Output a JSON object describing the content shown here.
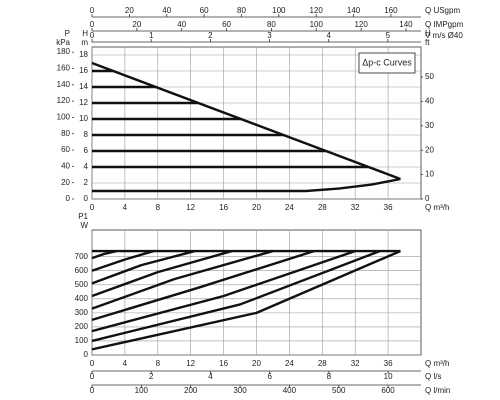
{
  "chart_data": [
    {
      "type": "line",
      "annotation": "Δp-c Curves",
      "color": "#111111",
      "grid": true,
      "xlim": [
        0,
        40
      ],
      "xticks": [
        0,
        4,
        8,
        12,
        16,
        20,
        24,
        28,
        32,
        36
      ],
      "xlabel": "Q m³/h",
      "ylim": [
        0,
        19
      ],
      "yticks": [
        0,
        2,
        4,
        6,
        8,
        10,
        12,
        14,
        16,
        18
      ],
      "ylabel": [
        "H",
        "m"
      ],
      "extra_axes": [
        {
          "position": "left-outer",
          "label": [
            "P",
            "kPa"
          ],
          "lim": [
            0,
            186.3
          ],
          "ticks": [
            0,
            20,
            40,
            60,
            80,
            100,
            120,
            140,
            160,
            180
          ]
        },
        {
          "position": "right",
          "label": [
            "H",
            "ft"
          ],
          "lim": [
            0,
            62.3
          ],
          "ticks": [
            0,
            10,
            20,
            30,
            40,
            50
          ]
        },
        {
          "position": "top-1",
          "label": [
            "Q USgpm"
          ],
          "lim": [
            0,
            176.1
          ],
          "ticks": [
            0,
            20,
            40,
            60,
            80,
            100,
            120,
            140,
            160
          ]
        },
        {
          "position": "top-2",
          "label": [
            "Q IMPgpm"
          ],
          "lim": [
            0,
            146.7
          ],
          "ticks": [
            0,
            20,
            40,
            60,
            80,
            100,
            120,
            140
          ]
        },
        {
          "position": "top-3",
          "label": [
            "V m/s Ø40"
          ],
          "lim": [
            0,
            5.56
          ],
          "ticks": [
            0,
            1,
            2,
            3,
            4,
            5
          ]
        }
      ],
      "series": [
        {
          "x": [
            0,
            37.5
          ],
          "values": [
            17,
            2.5
          ]
        },
        {
          "x": [
            0,
            2.6
          ],
          "values": [
            16,
            16
          ]
        },
        {
          "x": [
            0,
            7.8
          ],
          "values": [
            14,
            14
          ]
        },
        {
          "x": [
            0,
            12.9
          ],
          "values": [
            12,
            12
          ]
        },
        {
          "x": [
            0,
            18.1
          ],
          "values": [
            10,
            10
          ]
        },
        {
          "x": [
            0,
            23.3
          ],
          "values": [
            8,
            8
          ]
        },
        {
          "x": [
            0,
            28.4
          ],
          "values": [
            6,
            6
          ]
        },
        {
          "x": [
            0,
            33.6
          ],
          "values": [
            4,
            4
          ]
        },
        {
          "x": [
            0,
            26,
            30,
            34,
            37.5
          ],
          "values": [
            1,
            1,
            1.3,
            1.8,
            2.5
          ]
        }
      ]
    },
    {
      "type": "line",
      "color": "#111111",
      "grid": true,
      "xlim": [
        0,
        40
      ],
      "xticks": [
        0,
        4,
        8,
        12,
        16,
        20,
        24,
        28,
        32,
        36
      ],
      "xlabel": "Q m³/h",
      "ylim": [
        0,
        890
      ],
      "yticks": [
        0,
        100,
        200,
        300,
        400,
        500,
        600,
        700
      ],
      "ylabel": [
        "P1",
        "W"
      ],
      "extra_axes": [
        {
          "position": "bottom-2",
          "label": [
            "Q l/s"
          ],
          "lim": [
            0,
            11.11
          ],
          "ticks": [
            0,
            2,
            4,
            6,
            8,
            10
          ]
        },
        {
          "position": "bottom-3",
          "label": [
            "Q l/min"
          ],
          "lim": [
            0,
            666.7
          ],
          "ticks": [
            0,
            100,
            200,
            300,
            400,
            500,
            600
          ]
        }
      ],
      "series": [
        {
          "x": [
            0,
            37.5
          ],
          "values": [
            740,
            740
          ]
        },
        {
          "x": [
            0,
            1.5,
            3
          ],
          "values": [
            690,
            720,
            740
          ]
        },
        {
          "x": [
            0,
            4,
            7.5
          ],
          "values": [
            600,
            680,
            740
          ]
        },
        {
          "x": [
            0,
            6,
            12.5
          ],
          "values": [
            510,
            640,
            740
          ]
        },
        {
          "x": [
            0,
            8,
            17
          ],
          "values": [
            420,
            590,
            740
          ]
        },
        {
          "x": [
            0,
            10,
            22
          ],
          "values": [
            330,
            540,
            740
          ]
        },
        {
          "x": [
            0,
            13,
            27
          ],
          "values": [
            250,
            480,
            740
          ]
        },
        {
          "x": [
            0,
            16,
            32
          ],
          "values": [
            170,
            420,
            740
          ]
        },
        {
          "x": [
            0,
            18,
            35
          ],
          "values": [
            100,
            360,
            740
          ]
        },
        {
          "x": [
            0,
            20,
            37.5
          ],
          "values": [
            40,
            300,
            740
          ]
        }
      ]
    }
  ]
}
